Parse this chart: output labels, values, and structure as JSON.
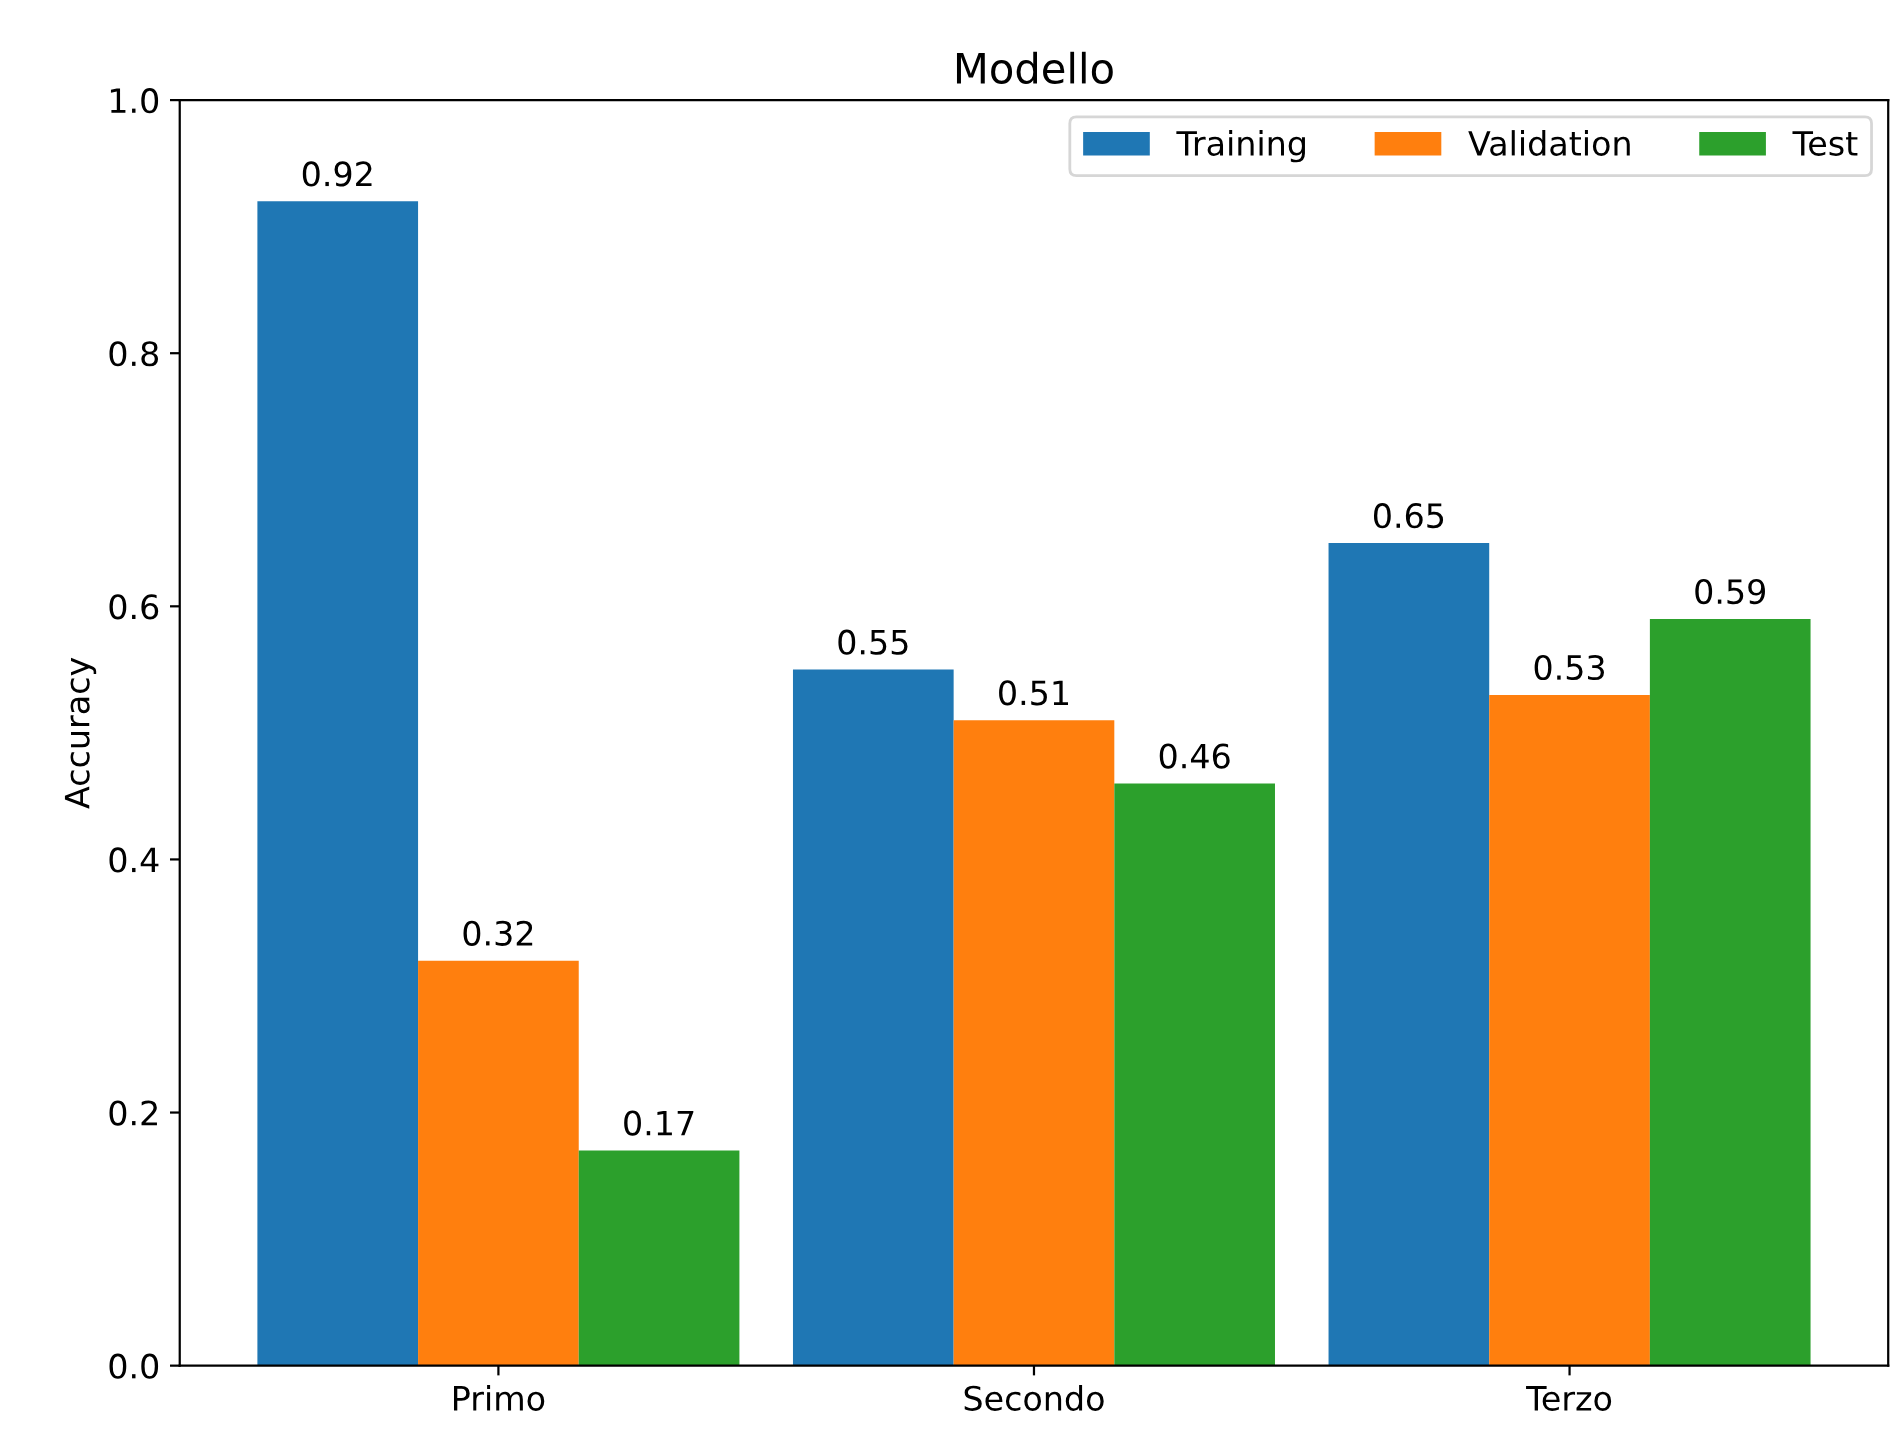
{
  "chart_data": {
    "type": "bar",
    "title": "Modello",
    "ylabel": "Accuracy",
    "categories": [
      "Primo",
      "Secondo",
      "Terzo"
    ],
    "series": [
      {
        "name": "Training",
        "color": "#1f77b4",
        "values": [
          0.92,
          0.55,
          0.65
        ]
      },
      {
        "name": "Validation",
        "color": "#ff7f0e",
        "values": [
          0.32,
          0.51,
          0.53
        ]
      },
      {
        "name": "Test",
        "color": "#2ca02c",
        "values": [
          0.17,
          0.46,
          0.59
        ]
      }
    ],
    "ylim": [
      0,
      1.0
    ],
    "yticks": [
      {
        "value": 0,
        "label": "0.0"
      },
      0.2,
      0.4,
      0.6,
      0.8,
      {
        "value": 1.0,
        "label": "1.0"
      }
    ],
    "data_labels": true,
    "grid": false,
    "legend": "top right"
  }
}
